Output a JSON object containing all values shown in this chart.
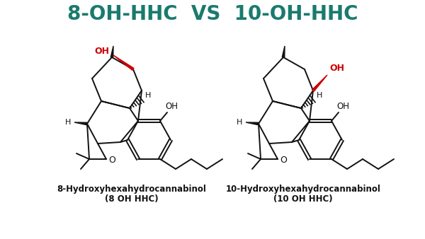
{
  "title": "8-OH-HHC  VS  10-OH-HHC",
  "title_color": "#1a7a6e",
  "title_fontsize": 20,
  "title_fontweight": "bold",
  "bg_color": "#ffffff",
  "label_left_line1": "8-Hydroxyhexahydrocannabinol",
  "label_left_line2": "(8 OH HHC)",
  "label_right_line1": "10-Hydroxyhexahydrocannabinol",
  "label_right_line2": "(10 OH HHC)",
  "label_fontsize": 8.5,
  "label_color": "#111111",
  "bond_color": "#111111",
  "red_color": "#cc0000",
  "lw": 1.4
}
